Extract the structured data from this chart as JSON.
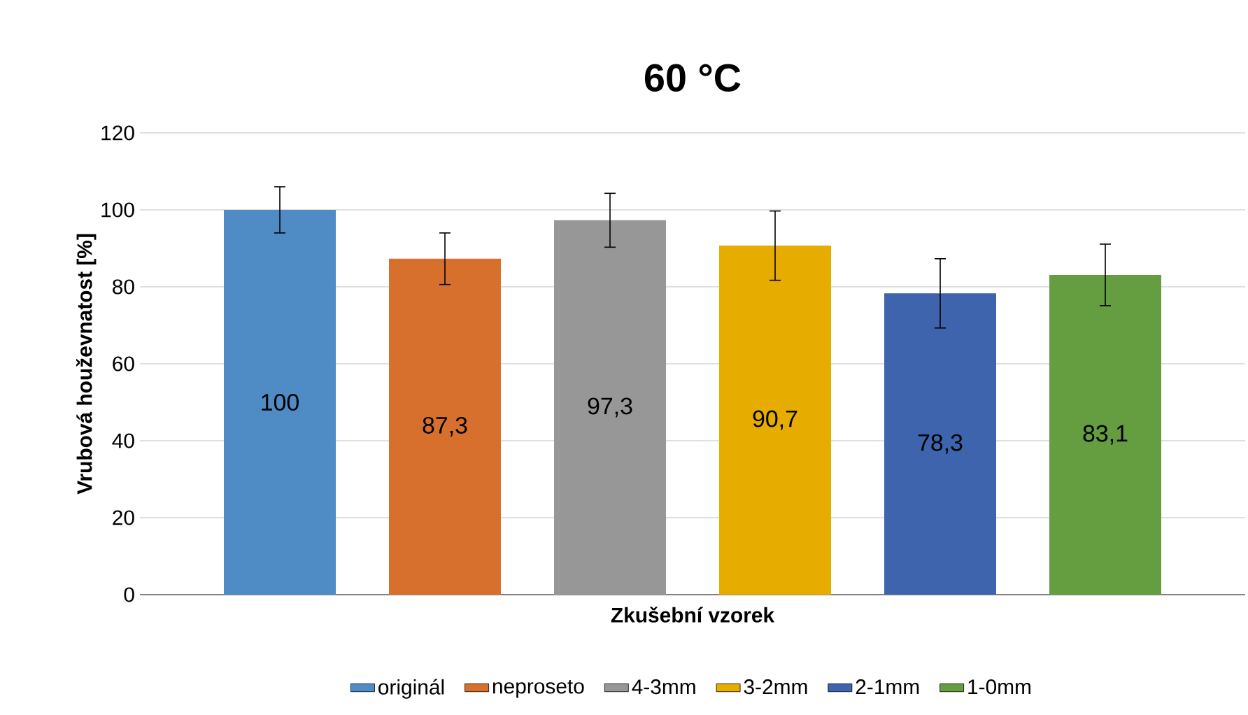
{
  "chart_data": {
    "type": "bar",
    "title": "60 °C",
    "xlabel": "Zkušební vzorek",
    "ylabel": "Vrubová houževnatost [%]",
    "categories": [
      null
    ],
    "series": [
      {
        "name": "originál",
        "color": "#4f8bc4",
        "values": [
          100
        ],
        "errors": [
          6
        ],
        "value_labels": [
          "100"
        ]
      },
      {
        "name": "neproseto",
        "color": "#d7702c",
        "values": [
          87.3
        ],
        "errors": [
          6.7
        ],
        "value_labels": [
          "87,3"
        ]
      },
      {
        "name": "4-3mm",
        "color": "#979797",
        "values": [
          97.3
        ],
        "errors": [
          7
        ],
        "value_labels": [
          "97,3"
        ]
      },
      {
        "name": "3-2mm",
        "color": "#e7ac00",
        "values": [
          90.7
        ],
        "errors": [
          9
        ],
        "value_labels": [
          "90,7"
        ]
      },
      {
        "name": "2-1mm",
        "color": "#3e64ad",
        "values": [
          78.3
        ],
        "errors": [
          9
        ],
        "value_labels": [
          "78,3"
        ]
      },
      {
        "name": "1-0mm",
        "color": "#659d41",
        "values": [
          83.1
        ],
        "errors": [
          8
        ],
        "value_labels": [
          "83,1"
        ]
      }
    ],
    "ylim": [
      0,
      120
    ],
    "yticks": [
      0,
      20,
      40,
      60,
      80,
      100,
      120
    ],
    "grid": "y",
    "legend": "bottom"
  }
}
